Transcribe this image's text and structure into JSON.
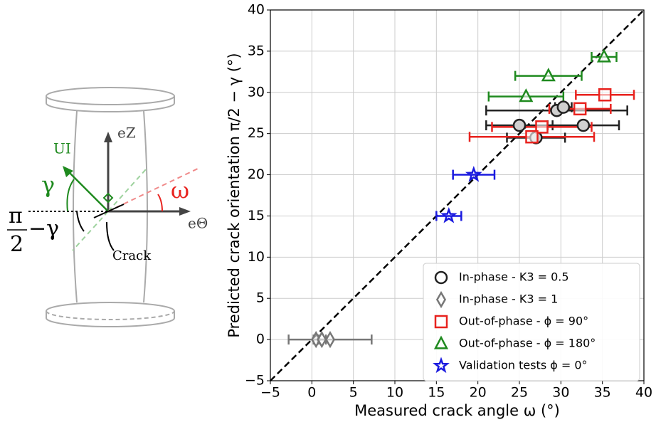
{
  "diagram": {
    "labels": {
      "ez": "eZ",
      "ui": "UI",
      "gamma": "γ",
      "omega": "ω",
      "pi_half": "π",
      "two": "2",
      "minus_gamma": "−γ",
      "crack": "Crack",
      "etheta": "eΘ"
    }
  },
  "chart_data": {
    "type": "scatter",
    "xlabel": "Measured crack angle ω (°)",
    "ylabel": "Predicted crack orientation π/2 − γ (°)",
    "xlim": [
      -5,
      40
    ],
    "ylim": [
      -5,
      40
    ],
    "xticks": [
      {
        "value": -5,
        "label": "−5"
      },
      0,
      5,
      10,
      15,
      20,
      25,
      30,
      35,
      40
    ],
    "yticks": [
      {
        "value": -5,
        "label": "−5"
      },
      0,
      5,
      10,
      15,
      20,
      25,
      30,
      35,
      40
    ],
    "grid": true,
    "legend": "lower right",
    "series": [
      {
        "name": "In-phase - K3 = 0.5",
        "color": "#222222",
        "marker": "circle",
        "x": [
          25,
          27,
          29.5,
          30.3,
          32.7
        ],
        "values": [
          26,
          24.5,
          27.8,
          28.2,
          26
        ],
        "xerr": [
          4,
          3.5,
          8.5,
          1,
          4.3
        ]
      },
      {
        "name": "In-phase - K3 = 1",
        "color": "#777777",
        "marker": "diamond",
        "x": [
          0.5,
          1.2,
          2.2
        ],
        "values": [
          0,
          0,
          0
        ],
        "xerr": [
          0.3,
          0.5,
          5
        ]
      },
      {
        "name": "Out-of-phase - ϕ = 90°",
        "color": "#e8231f",
        "marker": "square",
        "x": [
          35.3,
          32.3,
          27.7,
          26.5
        ],
        "values": [
          29.7,
          28,
          25.8,
          24.6
        ],
        "xerr": [
          3.5,
          3.7,
          6,
          7.5
        ]
      },
      {
        "name": "Out-of-phase - ϕ = 180°",
        "color": "#1f8a1f",
        "marker": "triangle",
        "x": [
          35.2,
          28.5,
          25.8
        ],
        "values": [
          34.3,
          32,
          29.5
        ],
        "xerr": [
          1.5,
          4,
          4.5
        ]
      },
      {
        "name": "Validation tests ϕ = 0°",
        "color": "#1a1adf",
        "marker": "star",
        "x": [
          19.5,
          16.5
        ],
        "values": [
          20,
          15
        ],
        "xerr": [
          2.5,
          1.5
        ]
      }
    ]
  }
}
